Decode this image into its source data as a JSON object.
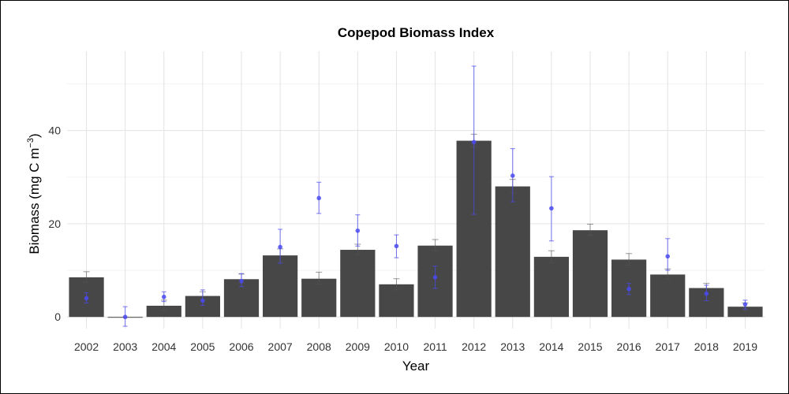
{
  "chart_data": {
    "type": "bar",
    "title": "Copepod Biomass Index",
    "xlabel": "Year",
    "ylabel": "Biomass (mg C m⁻³)",
    "ylabel_main": "Biomass (mg C m",
    "ylabel_sup": "−3",
    "ylabel_close": ")",
    "ylim": [
      -2.5,
      57
    ],
    "yticks": [
      0,
      20,
      40
    ],
    "grid": true,
    "legend": "none",
    "categories": [
      "2002",
      "2003",
      "2004",
      "2005",
      "2006",
      "2007",
      "2008",
      "2009",
      "2010",
      "2011",
      "2012",
      "2013",
      "2014",
      "2015",
      "2016",
      "2017",
      "2018",
      "2019"
    ],
    "series": [
      {
        "kind": "bar",
        "color": "#474747",
        "values": [
          8.5,
          0.0,
          2.4,
          4.5,
          8.1,
          13.2,
          8.2,
          14.4,
          7.0,
          15.3,
          37.8,
          28.0,
          12.9,
          18.6,
          12.3,
          9.1,
          6.2,
          2.2
        ],
        "error_low": [
          7.5,
          null,
          1.4,
          3.6,
          7.2,
          11.8,
          7.0,
          13.4,
          5.8,
          14.2,
          36.5,
          26.6,
          11.6,
          17.5,
          11.1,
          8.1,
          5.0,
          1.4
        ],
        "error_high": [
          9.7,
          null,
          3.6,
          5.4,
          9.2,
          14.6,
          9.6,
          15.6,
          8.2,
          16.6,
          39.2,
          29.5,
          14.2,
          19.9,
          13.6,
          10.3,
          7.2,
          3.0
        ]
      },
      {
        "kind": "point",
        "color": "#4a4af0",
        "values": [
          4.0,
          0.0,
          4.3,
          3.5,
          7.7,
          15.0,
          25.5,
          18.5,
          15.2,
          8.5,
          37.5,
          30.3,
          23.3,
          null,
          6.0,
          13.0,
          5.0,
          2.7
        ],
        "error_low": [
          3.0,
          -2.0,
          3.3,
          2.5,
          6.5,
          11.5,
          22.2,
          15.2,
          12.7,
          6.1,
          22.0,
          24.7,
          16.3,
          null,
          4.8,
          10.0,
          3.5,
          1.7
        ],
        "error_high": [
          5.2,
          2.2,
          5.4,
          5.8,
          9.3,
          18.8,
          28.9,
          21.9,
          17.6,
          10.9,
          53.8,
          36.1,
          30.1,
          null,
          7.2,
          16.8,
          6.8,
          3.6
        ]
      }
    ]
  }
}
